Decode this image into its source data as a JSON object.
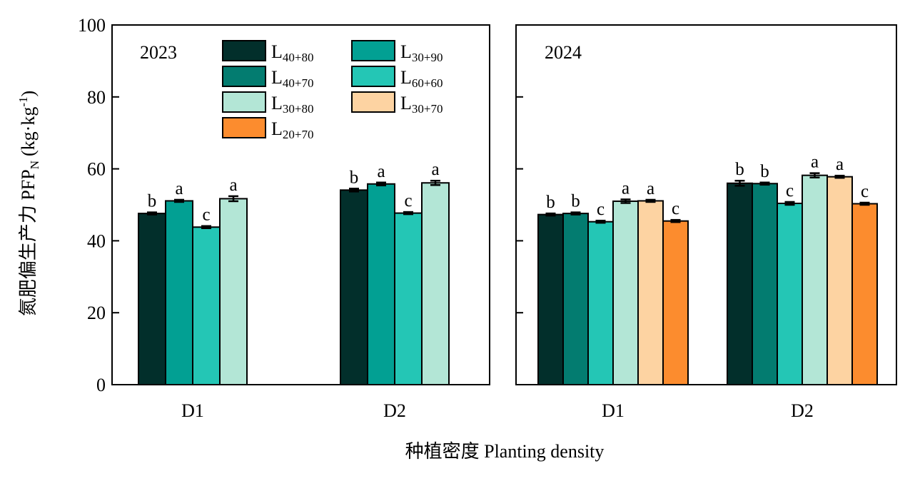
{
  "chart_data": {
    "type": "bar",
    "ylabel": "氮肥偏生产力 PFP",
    "ylabel_sub": "N",
    "ylabel_unit": "(kg·kg",
    "ylabel_unit_sup": "-1",
    "ylabel_unit_close": ")",
    "xlabel": "种植密度 Planting density",
    "ylim": [
      0,
      100
    ],
    "yticks": [
      "0",
      "20",
      "40",
      "60",
      "80",
      "100"
    ],
    "legend": [
      {
        "key": "L40_80",
        "base": "L",
        "sub": "40+80",
        "color": "#022f2b"
      },
      {
        "key": "L30_90",
        "base": "L",
        "sub": "30+90",
        "color": "#02a093"
      },
      {
        "key": "L40_70",
        "base": "L",
        "sub": "40+70",
        "color": "#037c70"
      },
      {
        "key": "L60_60",
        "base": "L",
        "sub": "60+60",
        "color": "#24c6b5"
      },
      {
        "key": "L30_80",
        "base": "L",
        "sub": "30+80",
        "color": "#b3e6d6"
      },
      {
        "key": "L30_70",
        "base": "L",
        "sub": "30+70",
        "color": "#fdd3a2"
      },
      {
        "key": "L20_70",
        "base": "L",
        "sub": "20+70",
        "color": "#fc8c2e"
      }
    ],
    "panels": [
      {
        "label": "2023",
        "categories": [
          {
            "name": "D1",
            "bars": [
              {
                "series": "L40_80",
                "value": 47.6,
                "err": 0.3,
                "sig": "b"
              },
              {
                "series": "L30_90",
                "value": 51.1,
                "err": 0.3,
                "sig": "a"
              },
              {
                "series": "L60_60",
                "value": 43.8,
                "err": 0.3,
                "sig": "c"
              },
              {
                "series": "L30_80",
                "value": 51.7,
                "err": 0.7,
                "sig": "a"
              }
            ]
          },
          {
            "name": "D2",
            "bars": [
              {
                "series": "L40_80",
                "value": 54.1,
                "err": 0.4,
                "sig": "b"
              },
              {
                "series": "L30_90",
                "value": 55.8,
                "err": 0.4,
                "sig": "a"
              },
              {
                "series": "L60_60",
                "value": 47.7,
                "err": 0.3,
                "sig": "c"
              },
              {
                "series": "L30_80",
                "value": 56.1,
                "err": 0.6,
                "sig": "a"
              }
            ]
          }
        ]
      },
      {
        "label": "2024",
        "categories": [
          {
            "name": "D1",
            "bars": [
              {
                "series": "L40_80",
                "value": 47.3,
                "err": 0.3,
                "sig": "b"
              },
              {
                "series": "L40_70",
                "value": 47.6,
                "err": 0.3,
                "sig": "b"
              },
              {
                "series": "L60_60",
                "value": 45.3,
                "err": 0.3,
                "sig": "c"
              },
              {
                "series": "L30_80",
                "value": 51.0,
                "err": 0.5,
                "sig": "a"
              },
              {
                "series": "L30_70",
                "value": 51.1,
                "err": 0.3,
                "sig": "a"
              },
              {
                "series": "L20_70",
                "value": 45.5,
                "err": 0.3,
                "sig": "c"
              }
            ]
          },
          {
            "name": "D2",
            "bars": [
              {
                "series": "L40_80",
                "value": 56.0,
                "err": 0.7,
                "sig": "b"
              },
              {
                "series": "L40_70",
                "value": 55.9,
                "err": 0.3,
                "sig": "b"
              },
              {
                "series": "L60_60",
                "value": 50.4,
                "err": 0.4,
                "sig": "c"
              },
              {
                "series": "L30_80",
                "value": 58.2,
                "err": 0.6,
                "sig": "a"
              },
              {
                "series": "L30_70",
                "value": 57.8,
                "err": 0.3,
                "sig": "a"
              },
              {
                "series": "L20_70",
                "value": 50.3,
                "err": 0.3,
                "sig": "c"
              }
            ]
          }
        ]
      }
    ]
  }
}
